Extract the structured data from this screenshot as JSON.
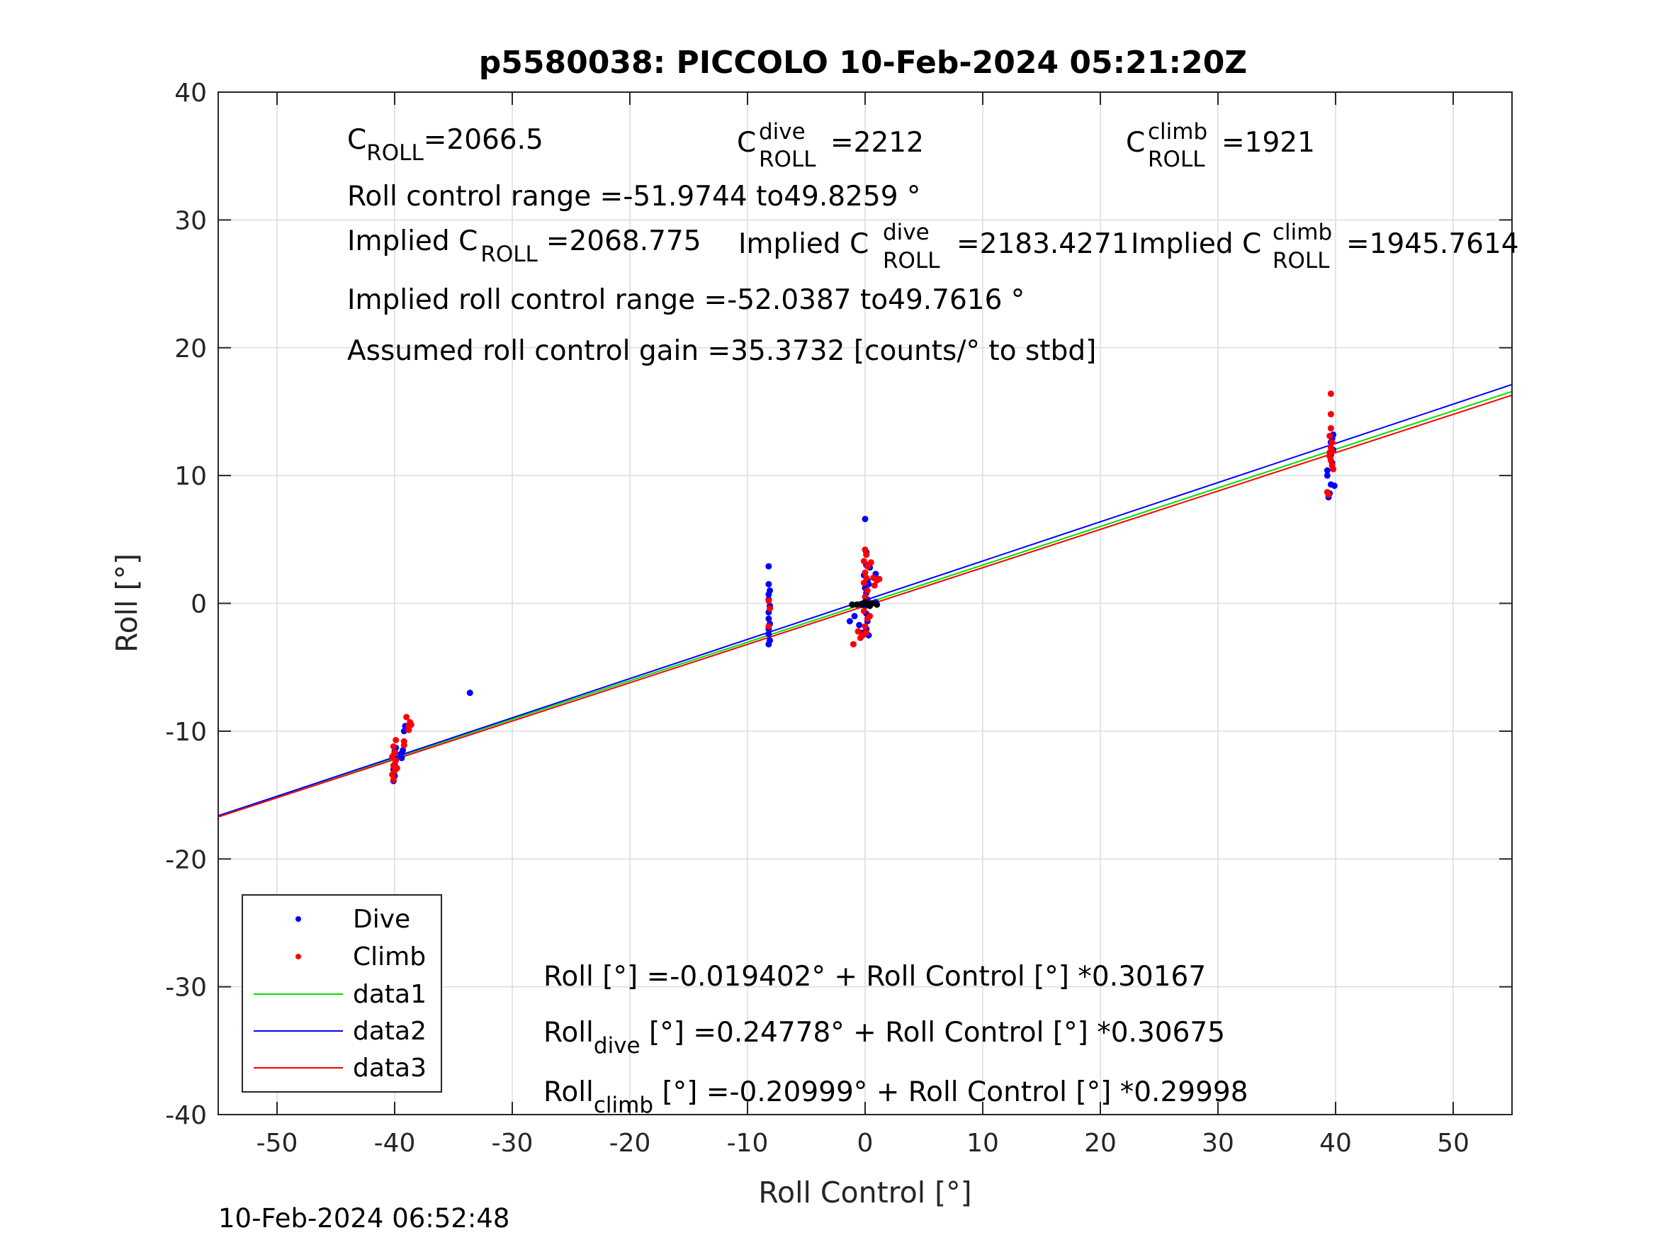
{
  "title": "p5580038: PICCOLO 10-Feb-2024 05:21:20Z",
  "timestamp": "10-Feb-2024 06:52:48",
  "annotations": {
    "c_roll": "=2066.5",
    "c_roll_dive": "=2212",
    "c_roll_climb": "=1921",
    "roll_control_range": "Roll control range =-51.9744 to49.8259 °",
    "implied_prefix": "Implied C",
    "implied_c_roll": "=2068.775",
    "implied_c_roll_dive": "=2183.4271",
    "implied_c_roll_climb": "=1945.7614",
    "implied_roll_control_range": "Implied roll control range =-52.0387 to49.7616 °",
    "gain": "Assumed roll control gain =35.3732 [counts/° to stbd]",
    "c": "C",
    "roll_sub": "ROLL",
    "dive_sup": "dive",
    "climb_sup": "climb",
    "fit_all": "Roll [°] =-0.019402° + Roll Control [°] *0.30167",
    "fit_dive_prefix": "Roll",
    "fit_dive_sub": "dive",
    "fit_dive_rest": " [°] =0.24778° + Roll Control [°] *0.30675",
    "fit_climb_prefix": "Roll",
    "fit_climb_sub": "climb",
    "fit_climb_rest": " [°] =-0.20999° + Roll Control [°] *0.29998"
  },
  "colors": {
    "dive": "#0000ff",
    "climb": "#ff0000",
    "data1": "#00e000",
    "data2": "#0000ff",
    "data3": "#ff0000",
    "other": "#000000"
  },
  "chart_data": {
    "type": "scatter",
    "xlabel": "Roll Control [°]",
    "ylabel": "Roll [°]",
    "xlim": [
      -55,
      55
    ],
    "ylim": [
      -40,
      40
    ],
    "xticks": [
      -50,
      -40,
      -30,
      -20,
      -10,
      0,
      10,
      20,
      30,
      40,
      50
    ],
    "yticks": [
      -40,
      -30,
      -20,
      -10,
      0,
      10,
      20,
      30,
      40
    ],
    "grid": true,
    "legend_position": "bottom-left",
    "legend": [
      "Dive",
      "Climb",
      "data1",
      "data2",
      "data3"
    ],
    "lines": [
      {
        "name": "data1",
        "intercept": -0.019402,
        "slope": 0.30167
      },
      {
        "name": "data2",
        "intercept": 0.24778,
        "slope": 0.30675
      },
      {
        "name": "data3",
        "intercept": -0.20999,
        "slope": 0.29998
      }
    ],
    "series": [
      {
        "name": "Dive",
        "points": [
          [
            -40.1,
            -13.9
          ],
          [
            -40.0,
            -13.5
          ],
          [
            -40.1,
            -13.0
          ],
          [
            -40.0,
            -12.6
          ],
          [
            -39.9,
            -12.2
          ],
          [
            -40.1,
            -11.9
          ],
          [
            -40.0,
            -11.6
          ],
          [
            -39.9,
            -11.3
          ],
          [
            -39.5,
            -11.8
          ],
          [
            -39.4,
            -12.1
          ],
          [
            -39.3,
            -11.5
          ],
          [
            -39.2,
            -10.0
          ],
          [
            -39.1,
            -9.6
          ],
          [
            -33.6,
            -7.0
          ],
          [
            -8.2,
            2.9
          ],
          [
            -8.2,
            1.5
          ],
          [
            -8.1,
            1.0
          ],
          [
            -8.2,
            0.7
          ],
          [
            -8.2,
            0.3
          ],
          [
            -8.1,
            -0.2
          ],
          [
            -8.2,
            -0.7
          ],
          [
            -8.2,
            -1.2
          ],
          [
            -8.1,
            -1.6
          ],
          [
            -8.2,
            -2.0
          ],
          [
            -8.2,
            -2.4
          ],
          [
            -8.1,
            -2.9
          ],
          [
            -8.2,
            -3.2
          ],
          [
            -1.3,
            -1.4
          ],
          [
            -0.9,
            -1.0
          ],
          [
            -0.5,
            -1.7
          ],
          [
            -0.3,
            -2.3
          ],
          [
            -0.1,
            2.2
          ],
          [
            0.0,
            6.6
          ],
          [
            0.1,
            4.0
          ],
          [
            0.1,
            3.0
          ],
          [
            0.2,
            1.8
          ],
          [
            0.0,
            1.2
          ],
          [
            0.1,
            0.8
          ],
          [
            0.2,
            0.3
          ],
          [
            0.0,
            -0.2
          ],
          [
            0.1,
            -0.8
          ],
          [
            0.2,
            -1.4
          ],
          [
            0.1,
            -2.0
          ],
          [
            0.3,
            -2.5
          ],
          [
            0.4,
            2.8
          ],
          [
            0.9,
            2.3
          ],
          [
            0.9,
            0.1
          ],
          [
            0.3,
            1.5
          ],
          [
            39.3,
            10.4
          ],
          [
            39.3,
            10.0
          ],
          [
            39.4,
            8.3
          ],
          [
            39.5,
            8.6
          ],
          [
            39.6,
            9.3
          ],
          [
            39.7,
            11.0
          ],
          [
            39.8,
            12.0
          ],
          [
            39.6,
            12.6
          ],
          [
            39.8,
            13.2
          ],
          [
            39.7,
            12.9
          ],
          [
            39.9,
            9.2
          ],
          [
            39.6,
            11.6
          ]
        ]
      },
      {
        "name": "Climb",
        "points": [
          [
            -40.1,
            -13.8
          ],
          [
            -40.2,
            -13.4
          ],
          [
            -40.0,
            -13.1
          ],
          [
            -40.1,
            -12.7
          ],
          [
            -39.9,
            -12.3
          ],
          [
            -40.2,
            -12.0
          ],
          [
            -40.0,
            -11.7
          ],
          [
            -40.1,
            -11.2
          ],
          [
            -39.9,
            -10.7
          ],
          [
            -39.8,
            -12.9
          ],
          [
            -39.2,
            -11.1
          ],
          [
            -39.2,
            -10.8
          ],
          [
            -38.8,
            -9.6
          ],
          [
            -38.7,
            -9.3
          ],
          [
            -39.0,
            -8.9
          ],
          [
            -38.8,
            -9.9
          ],
          [
            -38.6,
            -9.5
          ],
          [
            -8.2,
            0.2
          ],
          [
            -8.1,
            -0.4
          ],
          [
            -8.2,
            -1.8
          ],
          [
            -1.0,
            -3.2
          ],
          [
            -0.6,
            -2.2
          ],
          [
            -0.4,
            -2.7
          ],
          [
            -0.2,
            -2.5
          ],
          [
            0.0,
            4.2
          ],
          [
            0.1,
            3.8
          ],
          [
            -0.1,
            3.3
          ],
          [
            0.2,
            2.9
          ],
          [
            0.0,
            2.4
          ],
          [
            0.1,
            2.0
          ],
          [
            -0.1,
            1.6
          ],
          [
            0.2,
            1.0
          ],
          [
            0.0,
            0.5
          ],
          [
            0.1,
            0.0
          ],
          [
            -0.1,
            -0.6
          ],
          [
            0.2,
            -1.2
          ],
          [
            0.0,
            -1.8
          ],
          [
            0.1,
            -2.3
          ],
          [
            0.5,
            3.2
          ],
          [
            0.7,
            2.0
          ],
          [
            1.0,
            1.8
          ],
          [
            1.2,
            1.9
          ],
          [
            0.8,
            1.4
          ],
          [
            0.4,
            -1.0
          ],
          [
            39.6,
            16.4
          ],
          [
            39.6,
            14.8
          ],
          [
            39.6,
            13.7
          ],
          [
            39.5,
            13.1
          ],
          [
            39.7,
            12.6
          ],
          [
            39.6,
            12.2
          ],
          [
            39.7,
            11.9
          ],
          [
            39.5,
            11.5
          ],
          [
            39.6,
            11.2
          ],
          [
            39.7,
            10.8
          ],
          [
            39.8,
            10.5
          ],
          [
            39.3,
            8.7
          ],
          [
            39.4,
            8.5
          ],
          [
            39.5,
            11.8
          ]
        ]
      },
      {
        "name": "other",
        "points": [
          [
            -1.1,
            -0.1
          ],
          [
            -0.7,
            -0.1
          ],
          [
            -0.3,
            -0.1
          ],
          [
            0.2,
            -0.1
          ],
          [
            0.6,
            0.0
          ],
          [
            1.0,
            -0.1
          ],
          [
            0.0,
            0.1
          ],
          [
            0.4,
            -0.2
          ]
        ]
      }
    ]
  }
}
